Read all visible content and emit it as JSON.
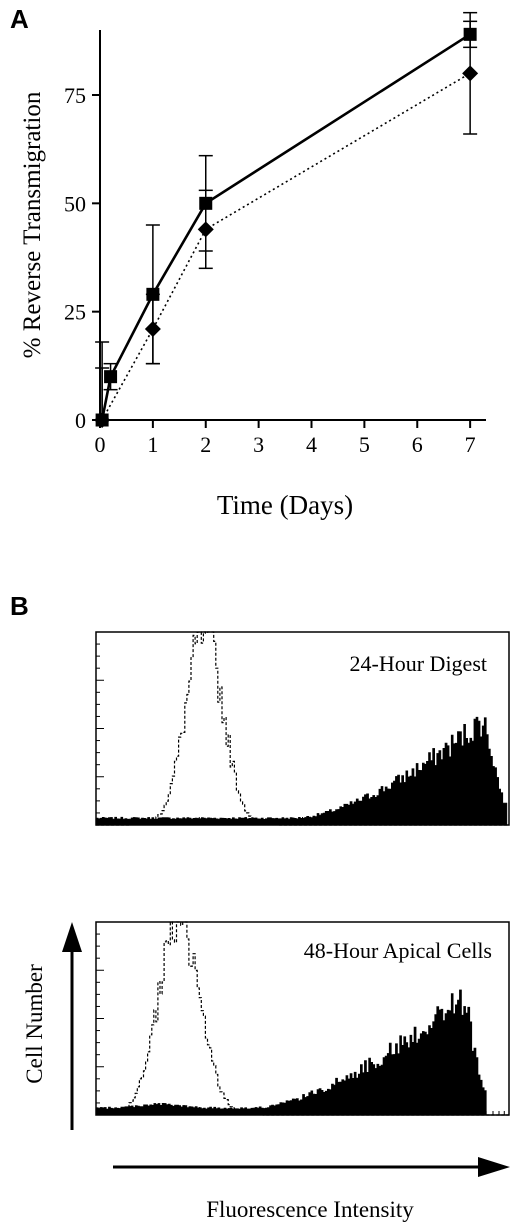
{
  "panels": {
    "a_label": "A",
    "b_label": "B"
  },
  "chart_data": [
    {
      "type": "line",
      "title": "",
      "xlabel": "Time (Days)",
      "ylabel": "% Reverse Transmigration",
      "xlim": [
        0,
        7.3
      ],
      "ylim": [
        0,
        90
      ],
      "x_ticks": [
        0,
        1,
        2,
        3,
        4,
        5,
        6,
        7
      ],
      "y_ticks": [
        0,
        25,
        50,
        75
      ],
      "grid": false,
      "legend": "none",
      "series": [
        {
          "marker": "square",
          "line": "solid",
          "x": [
            0.04,
            0.2,
            1,
            2,
            7
          ],
          "y": [
            0,
            10,
            29,
            50,
            89
          ],
          "err": [
            12,
            3,
            16,
            11,
            3
          ]
        },
        {
          "marker": "diamond",
          "line": "dotted",
          "x": [
            0.04,
            1,
            2,
            7
          ],
          "y": [
            0,
            21,
            44,
            80
          ],
          "err": [
            18,
            8,
            9,
            14
          ]
        }
      ]
    },
    {
      "type": "area",
      "title": "24-Hour Digest",
      "xlabel": "",
      "ylabel": "",
      "scale": "log",
      "grid": false,
      "series": [
        {
          "style": "outline-dotted",
          "peak_position": 0.26,
          "peak_height": 1.0
        },
        {
          "style": "filled",
          "peak_position": 0.93,
          "peak_height": 0.5
        }
      ]
    },
    {
      "type": "area",
      "title": "48-Hour Apical Cells",
      "xlabel": "Fluorescence Intensity",
      "ylabel": "Cell Number",
      "scale": "log",
      "grid": false,
      "series": [
        {
          "style": "outline-dotted",
          "peak_position": 0.2,
          "peak_height": 1.0
        },
        {
          "style": "filled",
          "peak_position": 0.88,
          "peak_height": 0.57
        }
      ]
    }
  ]
}
